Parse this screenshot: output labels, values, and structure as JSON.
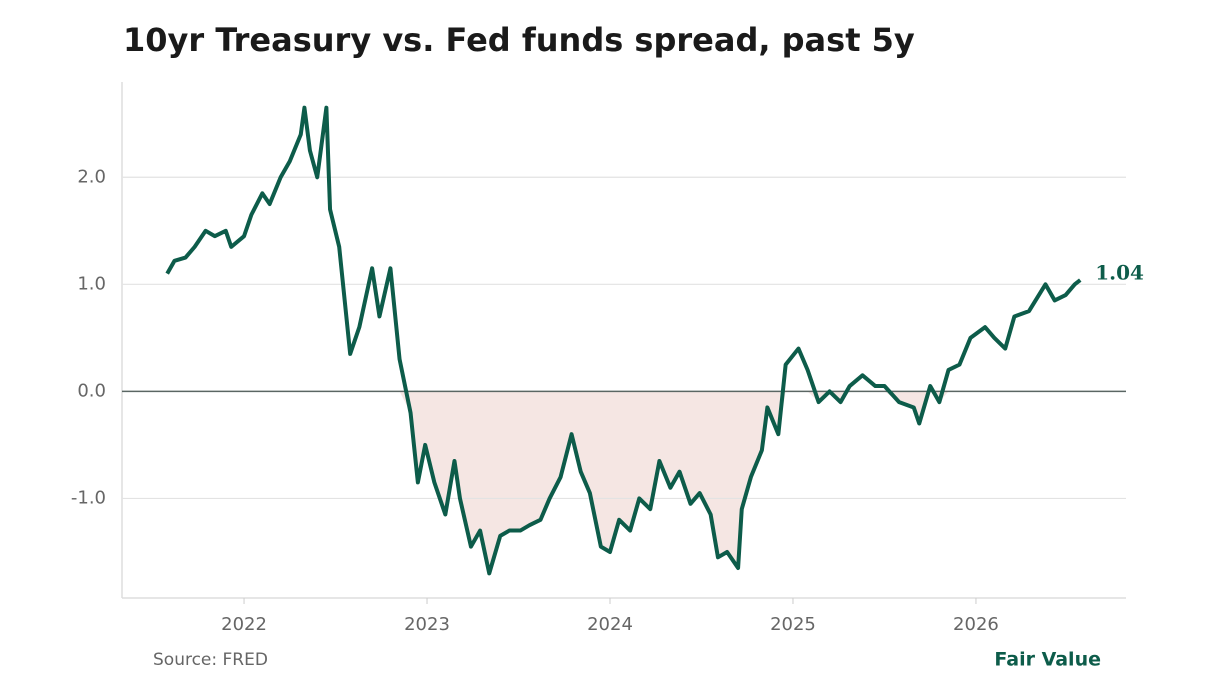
{
  "chart_data": {
    "type": "line",
    "title": "10yr Treasury vs. Fed funds spread, past 5y",
    "source": "Source: FRED",
    "brand": "Fair Value",
    "color": "#0d5c4a",
    "negative_fill": "#f5e6e3",
    "grid": true,
    "x": [
      2021.58,
      2021.62,
      2021.68,
      2021.73,
      2021.79,
      2021.84,
      2021.9,
      2021.93,
      2022.0,
      2022.04,
      2022.1,
      2022.14,
      2022.2,
      2022.25,
      2022.31,
      2022.33,
      2022.36,
      2022.4,
      2022.45,
      2022.47,
      2022.52,
      2022.58,
      2022.63,
      2022.7,
      2022.74,
      2022.8,
      2022.85,
      2022.91,
      2022.95,
      2022.99,
      2023.04,
      2023.1,
      2023.15,
      2023.18,
      2023.24,
      2023.29,
      2023.34,
      2023.4,
      2023.45,
      2023.51,
      2023.56,
      2023.62,
      2023.67,
      2023.73,
      2023.79,
      2023.84,
      2023.89,
      2023.95,
      2024.0,
      2024.05,
      2024.11,
      2024.16,
      2024.22,
      2024.27,
      2024.33,
      2024.38,
      2024.44,
      2024.49,
      2024.55,
      2024.59,
      2024.64,
      2024.7,
      2024.72,
      2024.77,
      2024.83,
      2024.86,
      2024.92,
      2024.96,
      2025.03,
      2025.08,
      2025.14,
      2025.2,
      2025.26,
      2025.31,
      2025.38,
      2025.45,
      2025.5,
      2025.58,
      2025.66,
      2025.69,
      2025.75,
      2025.8,
      2025.85,
      2025.91,
      2025.97,
      2026.05,
      2026.1,
      2026.16,
      2026.21,
      2026.29,
      2026.38,
      2026.43,
      2026.49,
      2026.54,
      2026.57
    ],
    "values": [
      1.1,
      1.22,
      1.25,
      1.35,
      1.5,
      1.45,
      1.5,
      1.35,
      1.45,
      1.65,
      1.85,
      1.75,
      2.0,
      2.15,
      2.4,
      2.65,
      2.25,
      2.0,
      2.65,
      1.7,
      1.35,
      0.35,
      0.6,
      1.15,
      0.7,
      1.15,
      0.3,
      -0.2,
      -0.85,
      -0.5,
      -0.85,
      -1.15,
      -0.65,
      -1.0,
      -1.45,
      -1.3,
      -1.7,
      -1.35,
      -1.3,
      -1.3,
      -1.25,
      -1.2,
      -1.0,
      -0.8,
      -0.4,
      -0.75,
      -0.95,
      -1.45,
      -1.5,
      -1.2,
      -1.3,
      -1.0,
      -1.1,
      -0.65,
      -0.9,
      -0.75,
      -1.05,
      -0.95,
      -1.15,
      -1.55,
      -1.5,
      -1.65,
      -1.1,
      -0.8,
      -0.55,
      -0.15,
      -0.4,
      0.25,
      0.4,
      0.2,
      -0.1,
      0.0,
      -0.1,
      0.05,
      0.15,
      0.05,
      0.05,
      -0.1,
      -0.15,
      -0.3,
      0.05,
      -0.1,
      0.2,
      0.25,
      0.5,
      0.6,
      0.5,
      0.4,
      0.7,
      0.75,
      1.0,
      0.85,
      0.9,
      1.0,
      1.04
    ],
    "xlim": [
      2021.333,
      2026.82
    ],
    "xticks": [
      2022,
      2023,
      2024,
      2025,
      2026
    ],
    "ylim": [
      -1.93,
      2.89
    ],
    "yticks": [
      {
        "value": -1,
        "label": "-1.0"
      },
      {
        "value": 0,
        "label": "0.0"
      },
      {
        "value": 1,
        "label": "1.0"
      },
      {
        "value": 2,
        "label": "2.0"
      }
    ]
  }
}
